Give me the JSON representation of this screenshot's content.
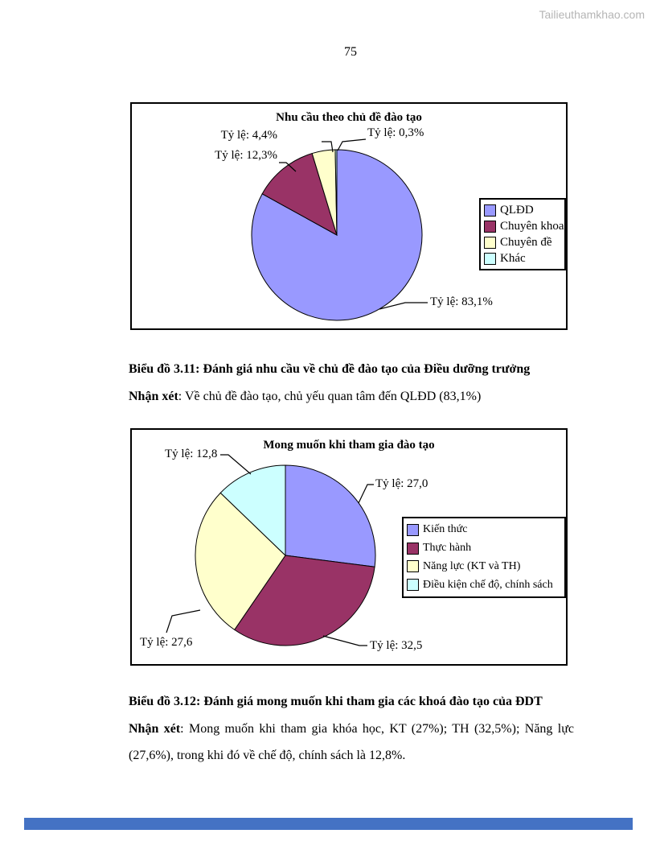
{
  "page": {
    "number": "75",
    "watermark": "Tailieuthamkhao.com",
    "bottom_bar_color": "#4472c4"
  },
  "chart_data": [
    {
      "type": "pie",
      "title": "Nhu cầu theo chủ đề đào tạo",
      "categories": [
        "QLĐD",
        "Chuyên khoa",
        "Chuyên đề",
        "Khác"
      ],
      "values": [
        83.1,
        12.3,
        4.4,
        0.3
      ],
      "colors": [
        "#9999FF",
        "#993366",
        "#FFFFCC",
        "#CCFFFF"
      ],
      "callouts": [
        "Tỷ lệ: 83,1%",
        "Tỷ lệ: 12,3%",
        "Tỷ lệ: 4,4%",
        "Tỷ lệ: 0,3%"
      ],
      "legend_position": "right",
      "start_angle": "top",
      "direction": "clockwise"
    },
    {
      "type": "pie",
      "title": "Mong muốn khi tham gia đào tạo",
      "categories": [
        "Kiến thức",
        "Thực hành",
        "Năng lực (KT và TH)",
        "Điều kiện chế độ, chính sách"
      ],
      "values": [
        27.0,
        32.5,
        27.6,
        12.8
      ],
      "colors": [
        "#9999FF",
        "#993366",
        "#FFFFCC",
        "#CCFFFF"
      ],
      "callouts": [
        "Tỷ lệ: 27,0",
        "Tỷ lệ: 32,5",
        "Tỷ lệ: 27,6",
        "Tỷ lệ: 12,8"
      ],
      "legend_position": "right",
      "start_angle": "top",
      "direction": "clockwise"
    }
  ],
  "captions": {
    "chart1_caption": "Biểu đồ 3.11: Đánh giá nhu cầu về chủ đề đào tạo của Điều dưỡng trưởng",
    "chart1_note_label": "Nhận xét",
    "chart1_note_rest": ": Về chủ đề đào tạo, chủ yếu quan tâm đến QLĐD (83,1%)",
    "chart2_caption": "Biểu đồ 3.12: Đánh giá mong muốn khi tham gia các khoá đào tạo của ĐDT",
    "chart2_note_label": "Nhận xét",
    "chart2_note_rest": ": Mong muốn khi tham gia khóa học, KT (27%); TH (32,5%); Năng lực (27,6%), trong khi đó về chế độ, chính sách là 12,8%."
  }
}
